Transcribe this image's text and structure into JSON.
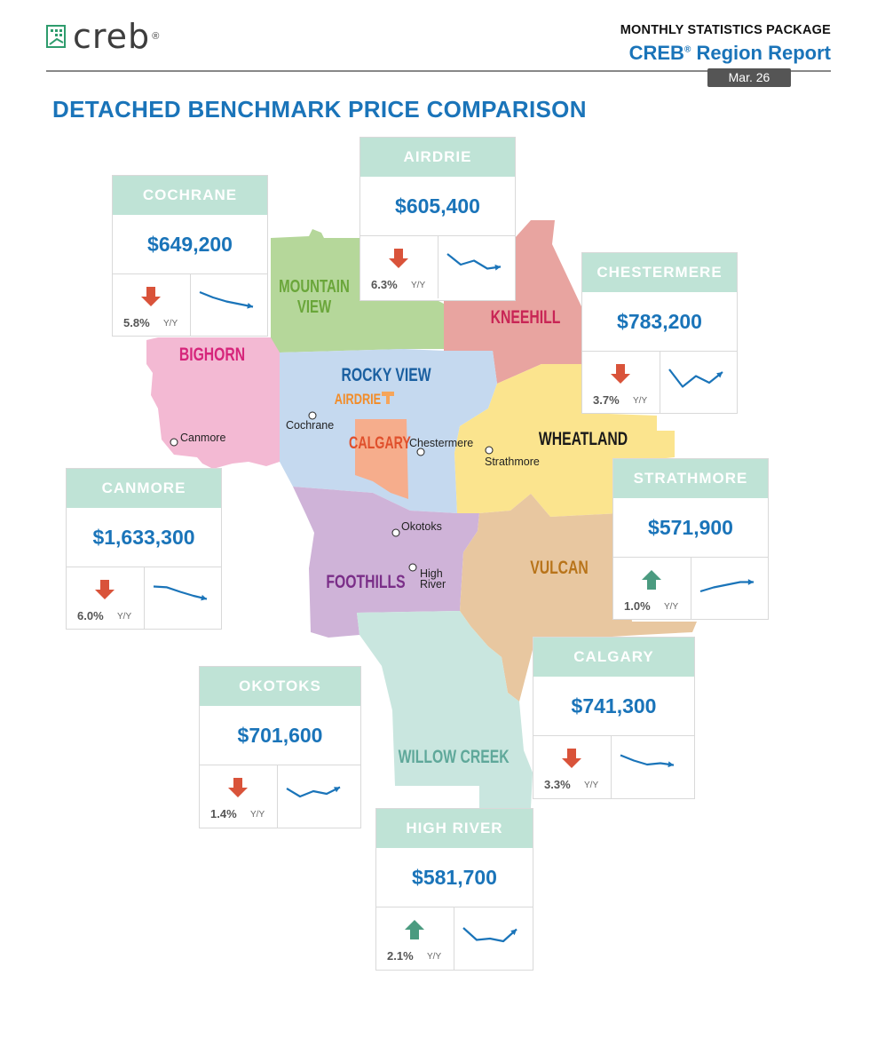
{
  "header": {
    "logo_text": "creb",
    "logo_reg": "®",
    "package_label": "MONTHLY STATISTICS PACKAGE",
    "report_title": "CREB",
    "report_title_reg": "®",
    "report_title_rest": " Region Report",
    "date_badge": "Mar. 26"
  },
  "page_title": "DETACHED BENCHMARK PRICE COMPARISON",
  "map": {
    "regions": [
      "MOUNTAIN",
      "VIEW",
      "KNEEHILL",
      "BIGHORN",
      "ROCKY VIEW",
      "AIRDRIE",
      "CALGARY",
      "WHEATLAND",
      "FOOTHILLS",
      "VULCAN",
      "WILLOW CREEK"
    ],
    "towns": [
      "Cochrane",
      "Canmore",
      "Chestermere",
      "Strathmore",
      "Okotoks",
      "High",
      "River"
    ],
    "colors": {
      "mountain_view": "#b5d79a",
      "kneehill": "#e8a4a0",
      "bighorn": "#f3b9d3",
      "rocky_view": "#c5d9ef",
      "calgary": "#f6ad8c",
      "wheatland": "#fbe48e",
      "foothills": "#cfb3d8",
      "vulcan": "#e8c7a0",
      "willow_creek": "#c9e6df"
    }
  },
  "cards": [
    {
      "name": "COCHRANE",
      "price": "$649,200",
      "pct": "5.8%",
      "yy": "Y/Y",
      "direction": "down",
      "trend": [
        0.2,
        0.4,
        0.55,
        0.65,
        0.75
      ]
    },
    {
      "name": "AIRDRIE",
      "price": "$605,400",
      "pct": "6.3%",
      "yy": "Y/Y",
      "direction": "down",
      "trend": [
        0.2,
        0.6,
        0.45,
        0.75,
        0.68
      ]
    },
    {
      "name": "CHESTERMERE",
      "price": "$783,200",
      "pct": "3.7%",
      "yy": "Y/Y",
      "direction": "down",
      "trend": [
        0.2,
        0.85,
        0.45,
        0.7,
        0.3
      ]
    },
    {
      "name": "CANMORE",
      "price": "$1,633,300",
      "pct": "6.0%",
      "yy": "Y/Y",
      "direction": "down",
      "trend": [
        0.25,
        0.28,
        0.45,
        0.6,
        0.72
      ]
    },
    {
      "name": "STRATHMORE",
      "price": "$571,900",
      "pct": "1.0%",
      "yy": "Y/Y",
      "direction": "up",
      "trend": [
        0.8,
        0.65,
        0.55,
        0.45,
        0.45
      ]
    },
    {
      "name": "CALGARY",
      "price": "$741,300",
      "pct": "3.3%",
      "yy": "Y/Y",
      "direction": "down",
      "trend": [
        0.25,
        0.45,
        0.6,
        0.55,
        0.62
      ]
    },
    {
      "name": "OKOTOKS",
      "price": "$701,600",
      "pct": "1.4%",
      "yy": "Y/Y",
      "direction": "down",
      "trend": [
        0.4,
        0.7,
        0.5,
        0.6,
        0.35
      ]
    },
    {
      "name": "HIGH RIVER",
      "price": "$581,700",
      "pct": "2.1%",
      "yy": "Y/Y",
      "direction": "up",
      "trend": [
        0.3,
        0.75,
        0.7,
        0.8,
        0.35
      ]
    }
  ],
  "style": {
    "card_header_bg": "#bfe3d6",
    "price_color": "#1a74b9",
    "down_arrow": "#d9533a",
    "up_arrow": "#4b9b80",
    "spark_color": "#1a74b9"
  }
}
